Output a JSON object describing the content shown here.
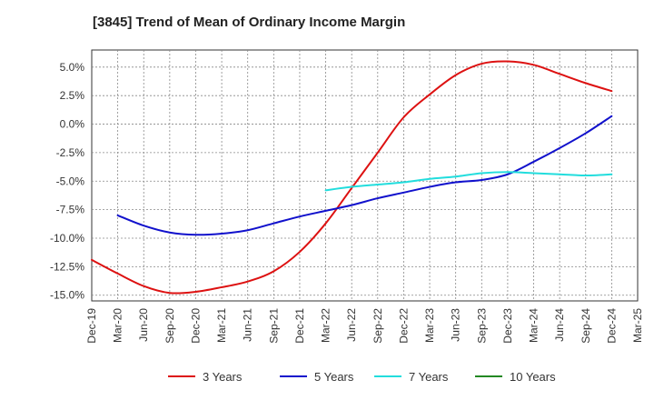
{
  "chart_data": {
    "type": "line",
    "title": "[3845]  Trend of Mean of Ordinary Income Margin",
    "xlabel": "",
    "ylabel": "",
    "ylim": [
      -15.5,
      6.5
    ],
    "grid": true,
    "legend_position": "bottom",
    "y_ticks": [
      5.0,
      2.5,
      0.0,
      -2.5,
      -5.0,
      -7.5,
      -10.0,
      -12.5,
      -15.0
    ],
    "y_tick_labels": [
      "5.0%",
      "2.5%",
      "0.0%",
      "-2.5%",
      "-5.0%",
      "-7.5%",
      "-10.0%",
      "-12.5%",
      "-15.0%"
    ],
    "x_tick_labels": [
      "Dec-19",
      "Mar-20",
      "Jun-20",
      "Sep-20",
      "Dec-20",
      "Mar-21",
      "Jun-21",
      "Sep-21",
      "Dec-21",
      "Mar-22",
      "Jun-22",
      "Sep-22",
      "Dec-22",
      "Mar-23",
      "Jun-23",
      "Sep-23",
      "Dec-23",
      "Mar-24",
      "Jun-24",
      "Sep-24",
      "Dec-24",
      "Mar-25"
    ],
    "series": [
      {
        "name": "3 Years",
        "color": "#dd1111",
        "values": [
          -11.9,
          -13.1,
          -14.2,
          -14.8,
          -14.7,
          -14.3,
          -13.8,
          -12.9,
          -11.2,
          -8.7,
          -5.6,
          -2.5,
          0.6,
          2.6,
          4.3,
          5.3,
          5.5,
          5.2,
          4.4,
          3.6,
          2.9,
          null
        ]
      },
      {
        "name": "5 Years",
        "color": "#1111cc",
        "values": [
          null,
          -8.0,
          -8.9,
          -9.5,
          -9.7,
          -9.6,
          -9.3,
          -8.7,
          -8.1,
          -7.6,
          -7.1,
          -6.5,
          -6.0,
          -5.5,
          -5.1,
          -4.9,
          -4.4,
          -3.3,
          -2.1,
          -0.8,
          0.7,
          null
        ]
      },
      {
        "name": "7 Years",
        "color": "#22dddd",
        "values": [
          null,
          null,
          null,
          null,
          null,
          null,
          null,
          null,
          null,
          -5.8,
          -5.5,
          -5.3,
          -5.1,
          -4.8,
          -4.6,
          -4.3,
          -4.2,
          -4.3,
          -4.4,
          -4.5,
          -4.4,
          null
        ]
      },
      {
        "name": "10 Years",
        "color": "#228822",
        "values": [
          null,
          null,
          null,
          null,
          null,
          null,
          null,
          null,
          null,
          null,
          null,
          null,
          null,
          null,
          null,
          null,
          null,
          null,
          null,
          null,
          null,
          null
        ]
      }
    ]
  }
}
